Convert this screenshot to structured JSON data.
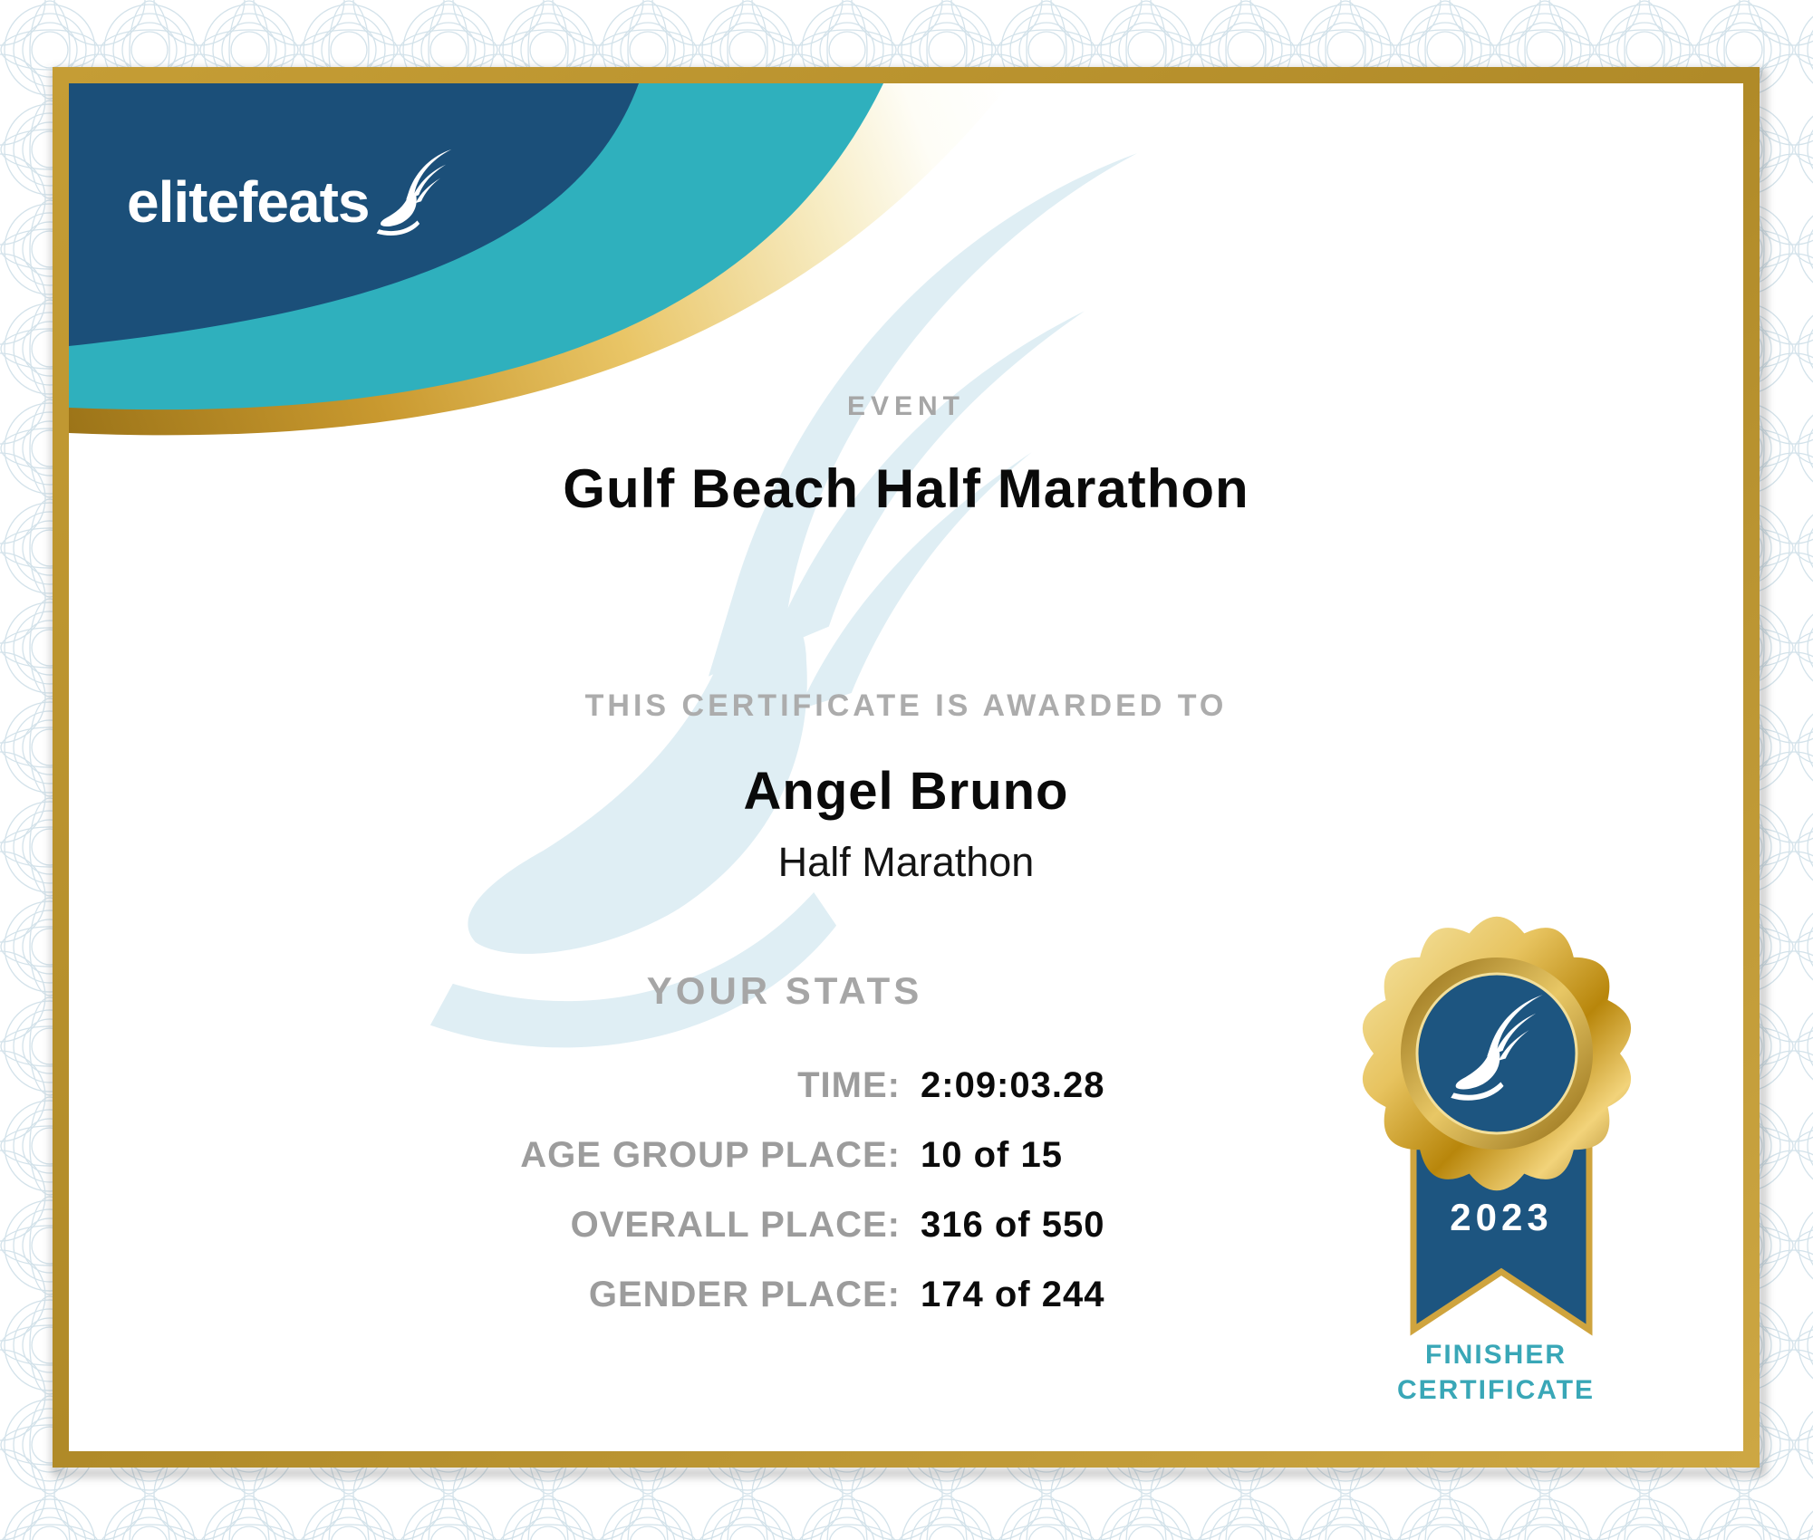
{
  "page": {
    "kind": "race finisher certificate",
    "brand": {
      "logo_text": "elitefeats",
      "logo_icon": "winged-foot-icon"
    },
    "event": {
      "label": "EVENT",
      "title": "Gulf Beach Half Marathon"
    },
    "award": {
      "label": "THIS CERTIFICATE IS AWARDED TO",
      "recipient": "Angel Bruno",
      "race": "Half Marathon"
    },
    "stats": {
      "heading": "YOUR STATS",
      "rows": [
        {
          "label": "TIME:",
          "value": "2:09:03.28"
        },
        {
          "label": "AGE GROUP PLACE:",
          "value": "10 of 15"
        },
        {
          "label": "OVERALL PLACE:",
          "value": "316 of 550"
        },
        {
          "label": "GENDER PLACE:",
          "value": "174 of 244"
        }
      ]
    },
    "badge": {
      "year": "2023",
      "caption": [
        "FINISHER",
        "CERTIFICATE"
      ],
      "icon": "winged-foot-icon"
    },
    "colors": {
      "navy": "#1b4f79",
      "teal": "#2fb0bd",
      "gold_frame": "#bd9434",
      "header_gray": "#a6a6a6",
      "stats_label_gray": "#9c9c9c",
      "finisher_teal": "#39a7b7",
      "watermark_blue": "#dfeef4",
      "text_black": "#0b0b0b"
    }
  }
}
